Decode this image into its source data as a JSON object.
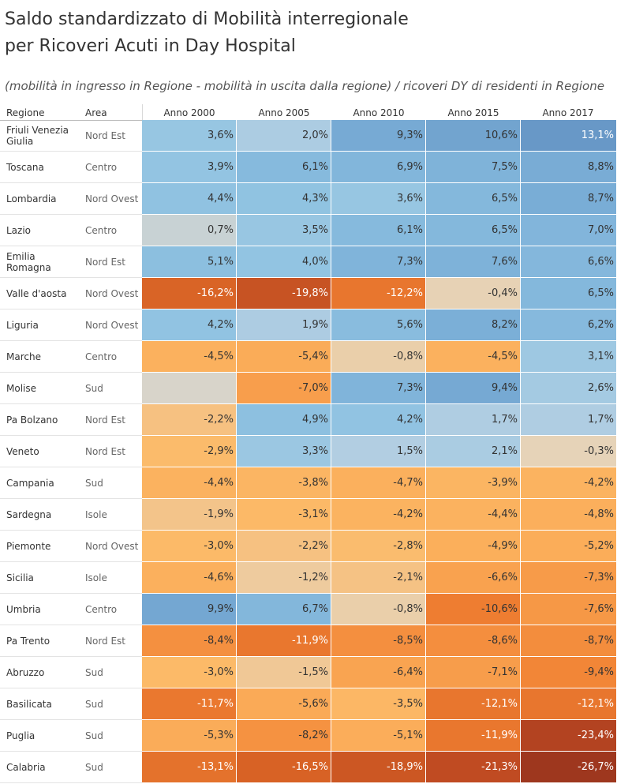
{
  "title_line1": "Saldo standardizzato di Mobilità interregionale",
  "title_line2": "per Ricoveri Acuti in Day Hospital",
  "subtitle": "(mobilità in ingresso in Regione - mobilità in uscita dalla regione) / ricoveri DY di residenti in Regione",
  "chart_data": {
    "type": "table",
    "columns": [
      "Regione",
      "Area",
      "Anno 2000",
      "Anno 2005",
      "Anno 2010",
      "Anno 2015",
      "Anno 2017"
    ],
    "rows": [
      {
        "region": "Friuli Venezia Giulia",
        "area": "Nord Est",
        "values": [
          "3,6%",
          "2,0%",
          "9,3%",
          "10,6%",
          "13,1%"
        ]
      },
      {
        "region": "Toscana",
        "area": "Centro",
        "values": [
          "3,9%",
          "6,1%",
          "6,9%",
          "7,5%",
          "8,8%"
        ]
      },
      {
        "region": "Lombardia",
        "area": "Nord Ovest",
        "values": [
          "4,4%",
          "4,3%",
          "3,6%",
          "6,5%",
          "8,7%"
        ]
      },
      {
        "region": "Lazio",
        "area": "Centro",
        "values": [
          "0,7%",
          "3,5%",
          "6,1%",
          "6,5%",
          "7,0%"
        ]
      },
      {
        "region": "Emilia Romagna",
        "area": "Nord Est",
        "values": [
          "5,1%",
          "4,0%",
          "7,3%",
          "7,6%",
          "6,6%"
        ]
      },
      {
        "region": "Valle d'aosta",
        "area": "Nord Ovest",
        "values": [
          "-16,2%",
          "-19,8%",
          "-12,2%",
          "-0,4%",
          "6,5%"
        ]
      },
      {
        "region": "Liguria",
        "area": "Nord Ovest",
        "values": [
          "4,2%",
          "1,9%",
          "5,6%",
          "8,2%",
          "6,2%"
        ]
      },
      {
        "region": "Marche",
        "area": "Centro",
        "values": [
          "-4,5%",
          "-5,4%",
          "-0,8%",
          "-4,5%",
          "3,1%"
        ]
      },
      {
        "region": "Molise",
        "area": "Sud",
        "values": [
          "",
          "-7,0%",
          "7,3%",
          "9,4%",
          "2,6%"
        ]
      },
      {
        "region": "Pa Bolzano",
        "area": "Nord Est",
        "values": [
          "-2,2%",
          "4,9%",
          "4,2%",
          "1,7%",
          "1,7%"
        ]
      },
      {
        "region": "Veneto",
        "area": "Nord Est",
        "values": [
          "-2,9%",
          "3,3%",
          "1,5%",
          "2,1%",
          "-0,3%"
        ]
      },
      {
        "region": "Campania",
        "area": "Sud",
        "values": [
          "-4,4%",
          "-3,8%",
          "-4,7%",
          "-3,9%",
          "-4,2%"
        ]
      },
      {
        "region": "Sardegna",
        "area": "Isole",
        "values": [
          "-1,9%",
          "-3,1%",
          "-4,2%",
          "-4,4%",
          "-4,8%"
        ]
      },
      {
        "region": "Piemonte",
        "area": "Nord Ovest",
        "values": [
          "-3,0%",
          "-2,2%",
          "-2,8%",
          "-4,9%",
          "-5,2%"
        ]
      },
      {
        "region": "Sicilia",
        "area": "Isole",
        "values": [
          "-4,6%",
          "-1,2%",
          "-2,1%",
          "-6,6%",
          "-7,3%"
        ]
      },
      {
        "region": "Umbria",
        "area": "Centro",
        "values": [
          "9,9%",
          "6,7%",
          "-0,8%",
          "-10,6%",
          "-7,6%"
        ]
      },
      {
        "region": "Pa Trento",
        "area": "Nord Est",
        "values": [
          "-8,4%",
          "-11,9%",
          "-8,5%",
          "-8,6%",
          "-8,7%"
        ]
      },
      {
        "region": "Abruzzo",
        "area": "Sud",
        "values": [
          "-3,0%",
          "-1,5%",
          "-6,4%",
          "-7,1%",
          "-9,4%"
        ]
      },
      {
        "region": "Basilicata",
        "area": "Sud",
        "values": [
          "-11,7%",
          "-5,6%",
          "-3,5%",
          "-12,1%",
          "-12,1%"
        ]
      },
      {
        "region": "Puglia",
        "area": "Sud",
        "values": [
          "-5,3%",
          "-8,2%",
          "-5,1%",
          "-11,9%",
          "-23,4%"
        ]
      },
      {
        "region": "Calabria",
        "area": "Sud",
        "values": [
          "-13,1%",
          "-16,5%",
          "-18,9%",
          "-21,3%",
          "-26,7%"
        ]
      }
    ]
  }
}
